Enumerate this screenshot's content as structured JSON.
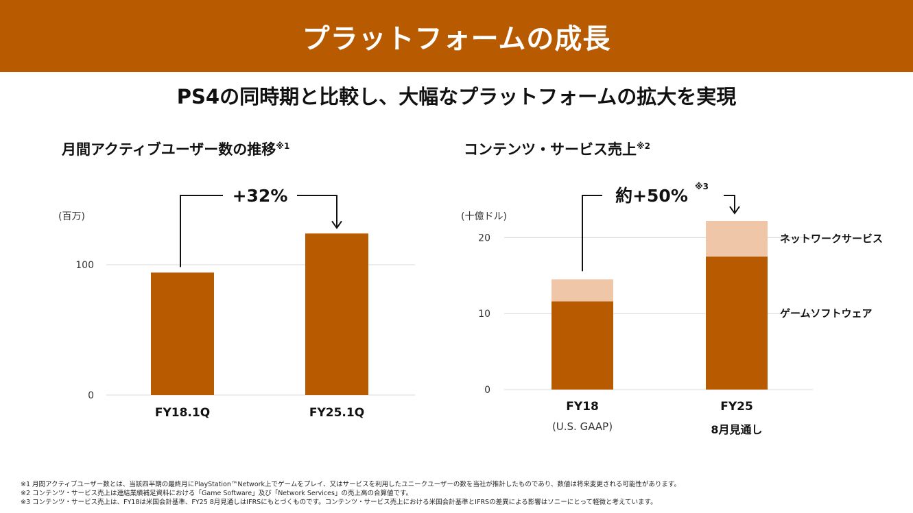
{
  "header": {
    "title": "プラットフォームの成長"
  },
  "subtitle": "PS4の同時期と比較し、大幅なプラットフォームの拡大を実現",
  "colors": {
    "brand": "#b85a00",
    "bar_dark": "#b85a00",
    "bar_light": "#efc6a7",
    "grid": "#d9d9d9"
  },
  "chart_data": [
    {
      "type": "bar",
      "title": "月間アクティブユーザー数の推移",
      "title_note": "※1",
      "unit_label": "(百万)",
      "categories": [
        "FY18.1Q",
        "FY25.1Q"
      ],
      "values": [
        94,
        124
      ],
      "yticks": [
        0,
        100
      ],
      "ylim": [
        0,
        150
      ],
      "grid": true,
      "annotation": {
        "text": "+32%",
        "note": ""
      }
    },
    {
      "type": "bar",
      "stacked": true,
      "title": "コンテンツ・サービス売上",
      "title_note": "※2",
      "unit_label": "(十億ドル)",
      "categories": [
        "FY18",
        "FY25"
      ],
      "category_sublabels": [
        "(U.S. GAAP)",
        "8月見通し"
      ],
      "series": [
        {
          "name": "ゲームソフトウェア",
          "values": [
            11.6,
            17.5
          ]
        },
        {
          "name": "ネットワークサービス",
          "values": [
            2.9,
            4.7
          ]
        }
      ],
      "yticks": [
        0,
        10,
        20
      ],
      "ylim": [
        0,
        25
      ],
      "grid": true,
      "annotation": {
        "text": "約+50%",
        "note": "※3"
      }
    }
  ],
  "footnotes": [
    "※1 月間アクティブユーザー数とは、当該四半期の最終月にPlayStation™Network上でゲームをプレイ、又はサービスを利用したユニークユーザーの数を当社が推計したものであり、数値は将来変更される可能性があります。",
    "※2 コンテンツ・サービス売上は連結業績補足資料における「Game Software」及び「Network Services」の売上高の合算値です。",
    "※3 コンテンツ・サービス売上は、FY18は米国会計基準、FY25 8月見通しはIFRSにもとづくものです。コンテンツ・サービス売上における米国会計基準とIFRSの差異による影響はソニーにとって軽微と考えています。"
  ]
}
